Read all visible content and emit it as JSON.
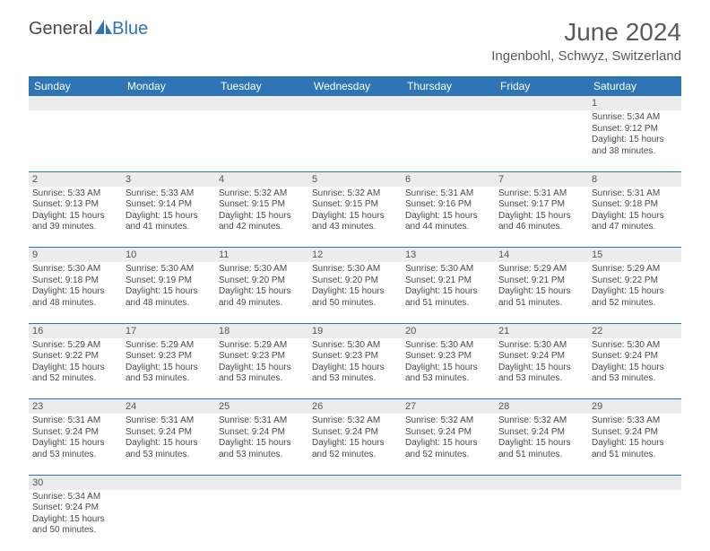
{
  "logo": {
    "part1": "General",
    "part2": "Blue"
  },
  "title": "June 2024",
  "location": "Ingenbohl, Schwyz, Switzerland",
  "colors": {
    "header_bg": "#2e75b6",
    "header_text": "#ffffff",
    "daynum_bg": "#ececec",
    "body_text": "#4a4a4a",
    "rule": "#2e75b6",
    "background": "#ffffff"
  },
  "typography": {
    "title_fontsize": 28,
    "location_fontsize": 15,
    "dayhead_fontsize": 12,
    "daynum_fontsize": 11,
    "cell_fontsize": 10
  },
  "day_names": [
    "Sunday",
    "Monday",
    "Tuesday",
    "Wednesday",
    "Thursday",
    "Friday",
    "Saturday"
  ],
  "weeks": [
    {
      "nums": [
        "",
        "",
        "",
        "",
        "",
        "",
        "1"
      ],
      "cells": [
        null,
        null,
        null,
        null,
        null,
        null,
        {
          "sunrise": "Sunrise: 5:34 AM",
          "sunset": "Sunset: 9:12 PM",
          "day1": "Daylight: 15 hours",
          "day2": "and 38 minutes."
        }
      ]
    },
    {
      "nums": [
        "2",
        "3",
        "4",
        "5",
        "6",
        "7",
        "8"
      ],
      "cells": [
        {
          "sunrise": "Sunrise: 5:33 AM",
          "sunset": "Sunset: 9:13 PM",
          "day1": "Daylight: 15 hours",
          "day2": "and 39 minutes."
        },
        {
          "sunrise": "Sunrise: 5:33 AM",
          "sunset": "Sunset: 9:14 PM",
          "day1": "Daylight: 15 hours",
          "day2": "and 41 minutes."
        },
        {
          "sunrise": "Sunrise: 5:32 AM",
          "sunset": "Sunset: 9:15 PM",
          "day1": "Daylight: 15 hours",
          "day2": "and 42 minutes."
        },
        {
          "sunrise": "Sunrise: 5:32 AM",
          "sunset": "Sunset: 9:15 PM",
          "day1": "Daylight: 15 hours",
          "day2": "and 43 minutes."
        },
        {
          "sunrise": "Sunrise: 5:31 AM",
          "sunset": "Sunset: 9:16 PM",
          "day1": "Daylight: 15 hours",
          "day2": "and 44 minutes."
        },
        {
          "sunrise": "Sunrise: 5:31 AM",
          "sunset": "Sunset: 9:17 PM",
          "day1": "Daylight: 15 hours",
          "day2": "and 46 minutes."
        },
        {
          "sunrise": "Sunrise: 5:31 AM",
          "sunset": "Sunset: 9:18 PM",
          "day1": "Daylight: 15 hours",
          "day2": "and 47 minutes."
        }
      ]
    },
    {
      "nums": [
        "9",
        "10",
        "11",
        "12",
        "13",
        "14",
        "15"
      ],
      "cells": [
        {
          "sunrise": "Sunrise: 5:30 AM",
          "sunset": "Sunset: 9:18 PM",
          "day1": "Daylight: 15 hours",
          "day2": "and 48 minutes."
        },
        {
          "sunrise": "Sunrise: 5:30 AM",
          "sunset": "Sunset: 9:19 PM",
          "day1": "Daylight: 15 hours",
          "day2": "and 48 minutes."
        },
        {
          "sunrise": "Sunrise: 5:30 AM",
          "sunset": "Sunset: 9:20 PM",
          "day1": "Daylight: 15 hours",
          "day2": "and 49 minutes."
        },
        {
          "sunrise": "Sunrise: 5:30 AM",
          "sunset": "Sunset: 9:20 PM",
          "day1": "Daylight: 15 hours",
          "day2": "and 50 minutes."
        },
        {
          "sunrise": "Sunrise: 5:30 AM",
          "sunset": "Sunset: 9:21 PM",
          "day1": "Daylight: 15 hours",
          "day2": "and 51 minutes."
        },
        {
          "sunrise": "Sunrise: 5:29 AM",
          "sunset": "Sunset: 9:21 PM",
          "day1": "Daylight: 15 hours",
          "day2": "and 51 minutes."
        },
        {
          "sunrise": "Sunrise: 5:29 AM",
          "sunset": "Sunset: 9:22 PM",
          "day1": "Daylight: 15 hours",
          "day2": "and 52 minutes."
        }
      ]
    },
    {
      "nums": [
        "16",
        "17",
        "18",
        "19",
        "20",
        "21",
        "22"
      ],
      "cells": [
        {
          "sunrise": "Sunrise: 5:29 AM",
          "sunset": "Sunset: 9:22 PM",
          "day1": "Daylight: 15 hours",
          "day2": "and 52 minutes."
        },
        {
          "sunrise": "Sunrise: 5:29 AM",
          "sunset": "Sunset: 9:23 PM",
          "day1": "Daylight: 15 hours",
          "day2": "and 53 minutes."
        },
        {
          "sunrise": "Sunrise: 5:29 AM",
          "sunset": "Sunset: 9:23 PM",
          "day1": "Daylight: 15 hours",
          "day2": "and 53 minutes."
        },
        {
          "sunrise": "Sunrise: 5:30 AM",
          "sunset": "Sunset: 9:23 PM",
          "day1": "Daylight: 15 hours",
          "day2": "and 53 minutes."
        },
        {
          "sunrise": "Sunrise: 5:30 AM",
          "sunset": "Sunset: 9:23 PM",
          "day1": "Daylight: 15 hours",
          "day2": "and 53 minutes."
        },
        {
          "sunrise": "Sunrise: 5:30 AM",
          "sunset": "Sunset: 9:24 PM",
          "day1": "Daylight: 15 hours",
          "day2": "and 53 minutes."
        },
        {
          "sunrise": "Sunrise: 5:30 AM",
          "sunset": "Sunset: 9:24 PM",
          "day1": "Daylight: 15 hours",
          "day2": "and 53 minutes."
        }
      ]
    },
    {
      "nums": [
        "23",
        "24",
        "25",
        "26",
        "27",
        "28",
        "29"
      ],
      "cells": [
        {
          "sunrise": "Sunrise: 5:31 AM",
          "sunset": "Sunset: 9:24 PM",
          "day1": "Daylight: 15 hours",
          "day2": "and 53 minutes."
        },
        {
          "sunrise": "Sunrise: 5:31 AM",
          "sunset": "Sunset: 9:24 PM",
          "day1": "Daylight: 15 hours",
          "day2": "and 53 minutes."
        },
        {
          "sunrise": "Sunrise: 5:31 AM",
          "sunset": "Sunset: 9:24 PM",
          "day1": "Daylight: 15 hours",
          "day2": "and 53 minutes."
        },
        {
          "sunrise": "Sunrise: 5:32 AM",
          "sunset": "Sunset: 9:24 PM",
          "day1": "Daylight: 15 hours",
          "day2": "and 52 minutes."
        },
        {
          "sunrise": "Sunrise: 5:32 AM",
          "sunset": "Sunset: 9:24 PM",
          "day1": "Daylight: 15 hours",
          "day2": "and 52 minutes."
        },
        {
          "sunrise": "Sunrise: 5:32 AM",
          "sunset": "Sunset: 9:24 PM",
          "day1": "Daylight: 15 hours",
          "day2": "and 51 minutes."
        },
        {
          "sunrise": "Sunrise: 5:33 AM",
          "sunset": "Sunset: 9:24 PM",
          "day1": "Daylight: 15 hours",
          "day2": "and 51 minutes."
        }
      ]
    },
    {
      "nums": [
        "30",
        "",
        "",
        "",
        "",
        "",
        ""
      ],
      "cells": [
        {
          "sunrise": "Sunrise: 5:34 AM",
          "sunset": "Sunset: 9:24 PM",
          "day1": "Daylight: 15 hours",
          "day2": "and 50 minutes."
        },
        null,
        null,
        null,
        null,
        null,
        null
      ]
    }
  ]
}
